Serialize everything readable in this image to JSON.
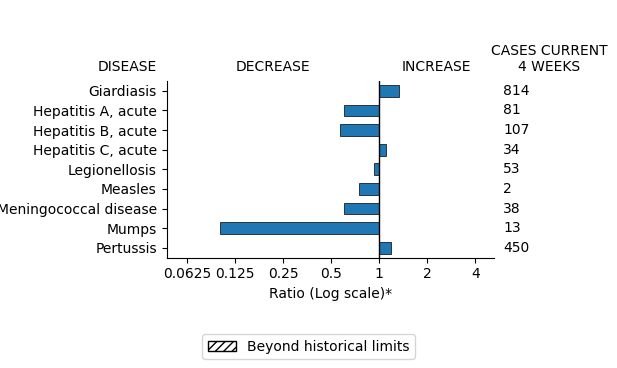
{
  "chart_data": {
    "type": "bar",
    "orientation": "horizontal",
    "log": "x",
    "categories": [
      "Giardiasis",
      "Hepatitis A, acute",
      "Hepatitis B, acute",
      "Hepatitis C, acute",
      "Legionellosis",
      "Measles",
      "Meningococcal disease",
      "Mumps",
      "Pertussis"
    ],
    "values": [
      1.32,
      0.6,
      0.57,
      1.1,
      0.93,
      0.75,
      0.6,
      0.1,
      1.18
    ],
    "baseline": 1,
    "cases": [
      814,
      81,
      107,
      34,
      53,
      2,
      38,
      13,
      450
    ],
    "x_label": "Ratio (Log scale)*",
    "xlim": [
      0.0465,
      5.2
    ],
    "xticks": [
      0.0625,
      0.125,
      0.25,
      0.5,
      1,
      2,
      4
    ],
    "column_headers": {
      "categories": "DISEASE",
      "decrease": "DECREASE",
      "increase": "INCREASE",
      "cases": "CASES CURRENT\n4 WEEKS"
    },
    "legend": "lower center",
    "legend_entries": [
      "Beyond historical limits"
    ],
    "grid": false
  }
}
